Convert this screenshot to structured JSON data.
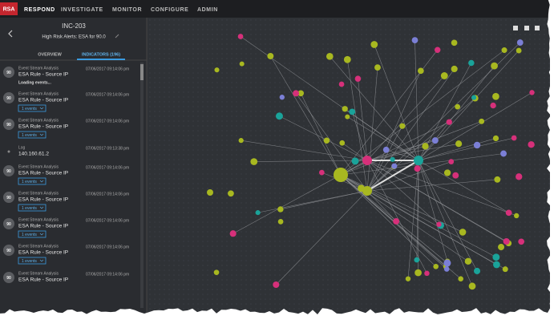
{
  "nav": {
    "logo": "RSA",
    "items": [
      "RESPOND",
      "INVESTIGATE",
      "MONITOR",
      "CONFIGURE",
      "ADMIN"
    ]
  },
  "incident": {
    "id": "INC-203",
    "name": "High Risk Alerts: ESA for 90.0"
  },
  "tabs": [
    "OVERVIEW",
    "INDICATORS (196)"
  ],
  "indicators": [
    {
      "score": 90,
      "source": "Event Stream Analysis",
      "date": "07/06/2017 09:14:06 pm",
      "title": "ESA Rule - Source IP",
      "detail": "Loading events..."
    },
    {
      "score": 90,
      "source": "Event Stream Analysis",
      "date": "07/06/2017 09:14:06 pm",
      "title": "ESA Rule - Source IP",
      "button": "1 events"
    },
    {
      "score": 90,
      "source": "Event Stream Analysis",
      "date": "07/06/2017 09:14:06 pm",
      "title": "ESA Rule - Source IP",
      "button": "1 events"
    },
    {
      "source": "Log",
      "date": "07/06/2017 09:13:38 pm",
      "title": "140.160.61.2"
    },
    {
      "score": 90,
      "source": "Event Stream Analysis",
      "date": "07/06/2017 09:14:06 pm",
      "title": "ESA Rule - Source IP",
      "button": "1 events"
    },
    {
      "score": 90,
      "source": "Event Stream Analysis",
      "date": "07/06/2017 09:14:06 pm",
      "title": "ESA Rule - Source IP",
      "button": "1 events"
    },
    {
      "score": 90,
      "source": "Event Stream Analysis",
      "date": "07/06/2017 09:14:06 pm",
      "title": "ESA Rule - Source IP",
      "button": "1 events"
    },
    {
      "score": 90,
      "source": "Event Stream Analysis",
      "date": "07/06/2017 09:14:06 pm",
      "title": "ESA Rule - Source IP",
      "button": "1 events"
    },
    {
      "score": 90,
      "source": "Event Stream Analysis",
      "date": "07/06/2017 09:14:06 pm",
      "title": "ESA Rule - Source IP"
    }
  ]
}
